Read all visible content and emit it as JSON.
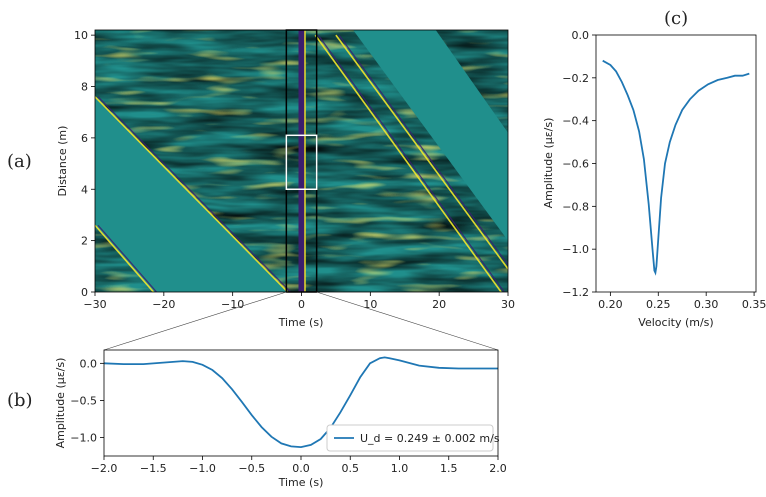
{
  "colors": {
    "line": "#1f77b4",
    "viridis_low": "#3b1e6e",
    "viridis_mid": "#208f8c",
    "viridis_high": "#f5e52a",
    "box_black": "#000000",
    "box_white": "#ffffff"
  },
  "panel_labels": {
    "a": "(a)",
    "b": "(b)",
    "c": "(c)"
  },
  "chart_data": [
    {
      "id": "a",
      "type": "heatmap",
      "title": "",
      "xlabel": "Time (s)",
      "ylabel": "Distance (m)",
      "xlim": [
        -30,
        30
      ],
      "ylim": [
        0,
        10.2
      ],
      "xticks": [
        -30,
        -20,
        -10,
        0,
        10,
        20,
        30
      ],
      "yticks": [
        0,
        2,
        4,
        6,
        8,
        10
      ],
      "colormap": "viridis",
      "dominant_feature": {
        "x_center": 0,
        "description_value": "strong low-amplitude band at time 0"
      },
      "diagonal_streaks": [
        {
          "x0": -30,
          "y0": 7.6,
          "x1": -2.0,
          "y1": 0.0
        },
        {
          "x0": -30,
          "y0": 2.6,
          "x1": -21.5,
          "y1": 0.0
        },
        {
          "x0": 2,
          "y0": 10.0,
          "x1": 29,
          "y1": 0.0
        },
        {
          "x0": 5,
          "y0": 10.0,
          "x1": 30,
          "y1": 0.9
        }
      ],
      "masked_regions": [
        {
          "polygon": [
            [
              -30,
              7.6
            ],
            [
              -30,
              2.6
            ],
            [
              -21.5,
              0
            ],
            [
              -2.0,
              0
            ]
          ]
        },
        {
          "polygon": [
            [
              7.5,
              10.2
            ],
            [
              19.5,
              10.2
            ],
            [
              30,
              6.2
            ],
            [
              30,
              2.0
            ]
          ]
        }
      ],
      "annotation_boxes": [
        {
          "color": "black",
          "x": [
            -2.2,
            2.2
          ],
          "y": [
            0,
            10.2
          ]
        },
        {
          "color": "white",
          "x": [
            -2.2,
            2.2
          ],
          "y": [
            4.0,
            6.1
          ]
        }
      ]
    },
    {
      "id": "b",
      "type": "line",
      "title": "",
      "xlabel": "Time (s)",
      "ylabel": "Amplitude (με/s)",
      "xlim": [
        -2.0,
        2.0
      ],
      "ylim": [
        -1.25,
        0.18
      ],
      "xticks": [
        -2.0,
        -1.5,
        -1.0,
        -0.5,
        0.0,
        0.5,
        1.0,
        1.5,
        2.0
      ],
      "xtick_labels": [
        "−2.0",
        "−1.5",
        "−1.0",
        "−0.5",
        "0.0",
        "0.5",
        "1.0",
        "1.5",
        "2.0"
      ],
      "yticks": [
        0.0,
        -0.5,
        -1.0
      ],
      "ytick_labels": [
        "0.0",
        "−0.5",
        "−1.0"
      ],
      "legend": "lower-right",
      "series": [
        {
          "name": "U_d = 0.249 ± 0.002 m/s",
          "x": [
            -2.0,
            -1.8,
            -1.6,
            -1.4,
            -1.2,
            -1.1,
            -1.0,
            -0.9,
            -0.8,
            -0.7,
            -0.6,
            -0.5,
            -0.4,
            -0.3,
            -0.2,
            -0.1,
            0.0,
            0.1,
            0.2,
            0.3,
            0.4,
            0.5,
            0.6,
            0.7,
            0.8,
            0.85,
            0.9,
            1.0,
            1.2,
            1.4,
            1.6,
            1.8,
            2.0
          ],
          "y": [
            0.0,
            -0.01,
            -0.01,
            0.01,
            0.03,
            0.02,
            -0.02,
            -0.09,
            -0.2,
            -0.35,
            -0.52,
            -0.7,
            -0.86,
            -0.99,
            -1.08,
            -1.12,
            -1.13,
            -1.1,
            -1.02,
            -0.87,
            -0.66,
            -0.43,
            -0.19,
            0.0,
            0.07,
            0.08,
            0.07,
            0.04,
            -0.03,
            -0.06,
            -0.07,
            -0.07,
            -0.07
          ]
        }
      ]
    },
    {
      "id": "c",
      "type": "line",
      "title": "",
      "xlabel": "Velocity (m/s)",
      "ylabel": "Amplitude (με/s)",
      "xlim": [
        0.185,
        0.352
      ],
      "ylim": [
        -1.2,
        0.0
      ],
      "xticks": [
        0.2,
        0.25,
        0.3,
        0.35
      ],
      "xtick_labels": [
        "0.20",
        "0.25",
        "0.30",
        "0.35"
      ],
      "yticks": [
        0.0,
        -0.2,
        -0.4,
        -0.6,
        -0.8,
        -1.0,
        -1.2
      ],
      "ytick_labels": [
        "0.0",
        "−0.2",
        "−0.4",
        "−0.6",
        "−0.8",
        "−1.0",
        "−1.2"
      ],
      "series": [
        {
          "name": "",
          "x": [
            0.192,
            0.2,
            0.206,
            0.212,
            0.218,
            0.224,
            0.23,
            0.235,
            0.24,
            0.244,
            0.246,
            0.247,
            0.248,
            0.25,
            0.253,
            0.257,
            0.262,
            0.268,
            0.275,
            0.283,
            0.292,
            0.302,
            0.312,
            0.322,
            0.33,
            0.338,
            0.345
          ],
          "y": [
            -0.12,
            -0.14,
            -0.17,
            -0.22,
            -0.28,
            -0.35,
            -0.45,
            -0.58,
            -0.79,
            -1.0,
            -1.1,
            -1.11,
            -1.08,
            -0.95,
            -0.76,
            -0.6,
            -0.5,
            -0.42,
            -0.35,
            -0.3,
            -0.26,
            -0.23,
            -0.21,
            -0.2,
            -0.19,
            -0.19,
            -0.18
          ]
        }
      ]
    }
  ]
}
